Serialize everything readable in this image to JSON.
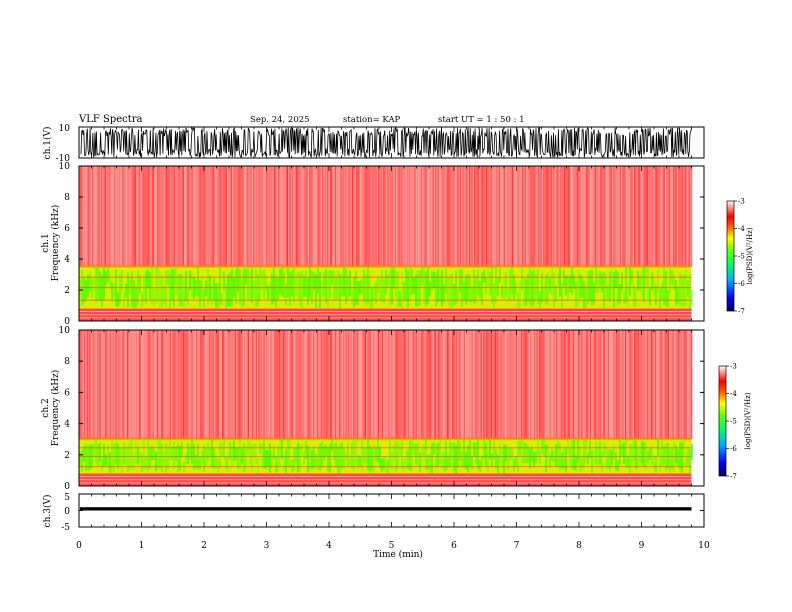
{
  "header": {
    "title": "VLF Spectra",
    "date": "Sep. 24, 2025",
    "station": "station= KAP",
    "start_ut": "start UT =  1 : 50 : 1"
  },
  "colors": {
    "spectrogram_low": "#0000cc",
    "spectrogram_mid": "#33ff00",
    "spectrogram_high": "#ff2020",
    "waveform": "#000000"
  },
  "chart_data": [
    {
      "type": "line",
      "name": "ch1-waveform",
      "ylabel": "ch.1(V)",
      "ylim": [
        -10,
        10
      ],
      "yticks": [
        "10",
        "-10"
      ],
      "description_values": {
        "typical_amplitude_v": 8,
        "peak_amplitude_v": 10
      }
    },
    {
      "type": "heatmap",
      "name": "ch1-spectrogram",
      "ylabel": "ch.1\nFrequency (kHz)",
      "ylim": [
        0,
        10
      ],
      "yticks": [
        "0",
        "2",
        "4",
        "6",
        "8",
        "10"
      ],
      "colorbar": {
        "label": "log(PSD)(V²/Hz)",
        "range": [
          -7,
          -3
        ],
        "ticks": [
          "-3",
          "-4",
          "-5",
          "-6",
          "-7"
        ]
      },
      "bands": [
        {
          "fmin_khz": 3.5,
          "fmax_khz": 10.0,
          "level": "high"
        },
        {
          "fmin_khz": 0.8,
          "fmax_khz": 3.5,
          "level": "mid"
        },
        {
          "fmin_khz": 0.0,
          "fmax_khz": 0.8,
          "level": "high"
        }
      ]
    },
    {
      "type": "heatmap",
      "name": "ch2-spectrogram",
      "ylabel": "ch.2\nFrequency (kHz)",
      "ylim": [
        0,
        10
      ],
      "yticks": [
        "0",
        "2",
        "4",
        "6",
        "8",
        "10"
      ],
      "colorbar": {
        "label": "log(PSD)(V²/Hz)",
        "range": [
          -7,
          -3
        ],
        "ticks": [
          "-3",
          "-4",
          "-5",
          "-6",
          "-7"
        ]
      },
      "bands": [
        {
          "fmin_khz": 3.0,
          "fmax_khz": 10.0,
          "level": "high"
        },
        {
          "fmin_khz": 0.8,
          "fmax_khz": 3.0,
          "level": "mid"
        },
        {
          "fmin_khz": 0.0,
          "fmax_khz": 0.8,
          "level": "high"
        }
      ]
    },
    {
      "type": "line",
      "name": "ch3-waveform",
      "ylabel": "ch.3(V)",
      "ylim": [
        -5,
        5
      ],
      "yticks": [
        "5",
        "0",
        "-5"
      ],
      "description_values": {
        "center_v": 0.5,
        "amplitude_v": 0.5
      }
    }
  ],
  "x_axis": {
    "label": "Time (min)",
    "xlim": [
      0,
      10
    ],
    "ticks": [
      "0",
      "1",
      "2",
      "3",
      "4",
      "5",
      "6",
      "7",
      "8",
      "9",
      "10"
    ],
    "data_end_min": 9.8
  }
}
